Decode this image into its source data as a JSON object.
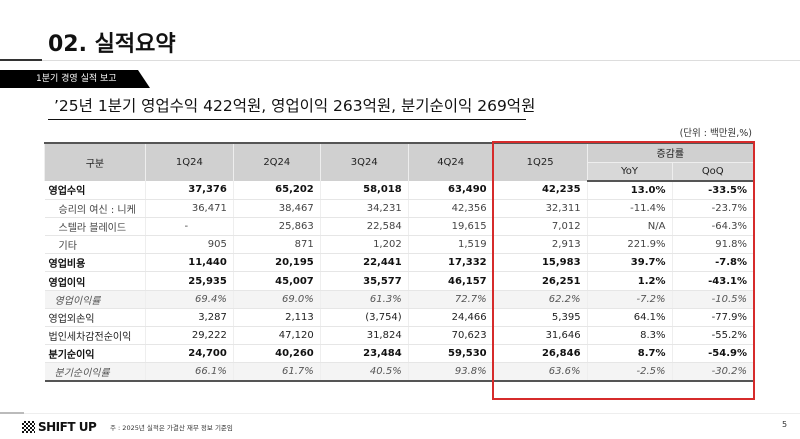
{
  "title": "02. 실적요약",
  "banner": "1분기 경영 실적 보고",
  "headline": "’25년 1분기 영업수익 422억원, 영업이익 263억원, 분기순이익 269억원",
  "unit": "(단위 : 백만원,%)",
  "table": {
    "headers": {
      "category": "구분",
      "cols": [
        "1Q24",
        "2Q24",
        "3Q24",
        "4Q24",
        "1Q25"
      ],
      "change": "증감률",
      "yoy": "YoY",
      "qoq": "QoQ"
    },
    "rows": [
      {
        "label": "영업수익",
        "style": "b",
        "values": [
          "37,376",
          "65,202",
          "58,018",
          "63,490",
          "42,235",
          "13.0%",
          "-33.5%"
        ]
      },
      {
        "label": "승리의 여신 : 니케",
        "style": "s",
        "values": [
          "36,471",
          "38,467",
          "34,231",
          "42,356",
          "32,311",
          "-11.4%",
          "-23.7%"
        ]
      },
      {
        "label": "스텔라 블레이드",
        "style": "s",
        "values": [
          "-",
          "25,863",
          "22,584",
          "19,615",
          "7,012",
          "N/A",
          "-64.3%"
        ]
      },
      {
        "label": "기타",
        "style": "s",
        "values": [
          "905",
          "871",
          "1,202",
          "1,519",
          "2,913",
          "221.9%",
          "91.8%"
        ]
      },
      {
        "label": "영업비용",
        "style": "b",
        "values": [
          "11,440",
          "20,195",
          "22,441",
          "17,332",
          "15,983",
          "39.7%",
          "-7.8%"
        ]
      },
      {
        "label": "영업이익",
        "style": "b",
        "values": [
          "25,935",
          "45,007",
          "35,577",
          "46,157",
          "26,251",
          "1.2%",
          "-43.1%"
        ]
      },
      {
        "label": "영업이익률",
        "style": "i",
        "values": [
          "69.4%",
          "69.0%",
          "61.3%",
          "72.7%",
          "62.2%",
          "-7.2%",
          "-10.5%"
        ]
      },
      {
        "label": "영업외손익",
        "style": "",
        "values": [
          "3,287",
          "2,113",
          "(3,754)",
          "24,466",
          "5,395",
          "64.1%",
          "-77.9%"
        ]
      },
      {
        "label": "법인세차감전순이익",
        "style": "",
        "values": [
          "29,222",
          "47,120",
          "31,824",
          "70,623",
          "31,646",
          "8.3%",
          "-55.2%"
        ]
      },
      {
        "label": "분기순이익",
        "style": "b",
        "values": [
          "24,700",
          "40,260",
          "23,484",
          "59,530",
          "26,846",
          "8.7%",
          "-54.9%"
        ]
      },
      {
        "label": "분기순이익률",
        "style": "i",
        "values": [
          "66.1%",
          "61.7%",
          "40.5%",
          "93.8%",
          "63.6%",
          "-2.5%",
          "-30.2%"
        ]
      }
    ]
  },
  "highlight_color": "#d62b2b",
  "footer": {
    "logo": "SHIFT UP",
    "note": "주 : 2025년 실적은 가결산 재무 정보 기준임",
    "page": "5"
  }
}
